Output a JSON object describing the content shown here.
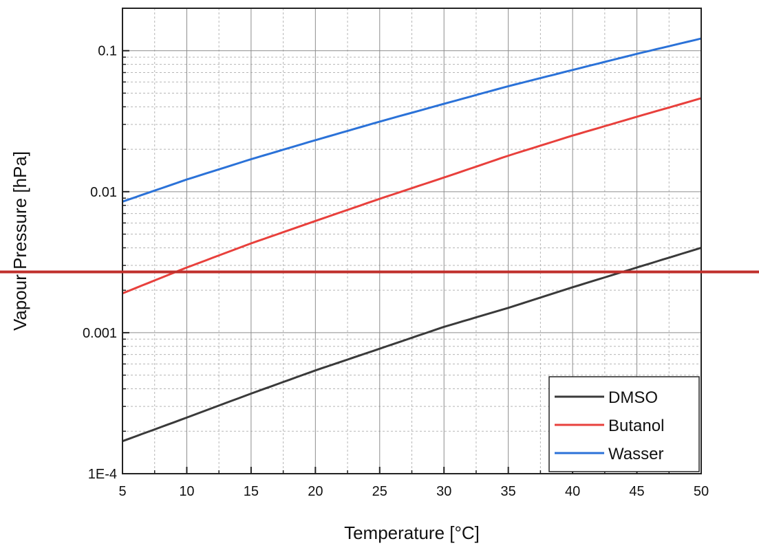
{
  "chart_data": {
    "type": "line",
    "xlabel": "Temperature [°C]",
    "ylabel": "Vapour Pressure [hPa]",
    "xlim": [
      5,
      50
    ],
    "ylim": [
      0.0001,
      0.2
    ],
    "y_scale": "log",
    "grid": true,
    "x_ticks": [
      5,
      10,
      15,
      20,
      25,
      30,
      35,
      40,
      45,
      50
    ],
    "x_tick_labels": [
      "5",
      "10",
      "15",
      "20",
      "25",
      "30",
      "35",
      "40",
      "45",
      "50"
    ],
    "y_ticks": [
      0.0001,
      0.001,
      0.01,
      0.1
    ],
    "y_tick_labels": [
      "1E-4",
      "0.001",
      "0.01",
      "0.1"
    ],
    "legend_position": "bottom-right",
    "series": [
      {
        "name": "DMSO",
        "color": "#3a3a3a",
        "x": [
          5,
          10,
          15,
          20,
          25,
          30,
          35,
          40,
          45,
          50
        ],
        "y": [
          0.00017,
          0.00025,
          0.00037,
          0.00054,
          0.00077,
          0.0011,
          0.0015,
          0.0021,
          0.0029,
          0.004
        ]
      },
      {
        "name": "Butanol",
        "color": "#e8403c",
        "x": [
          5,
          10,
          15,
          20,
          25,
          30,
          35,
          40,
          45,
          50
        ],
        "y": [
          0.0019,
          0.0029,
          0.0043,
          0.0062,
          0.0089,
          0.0126,
          0.018,
          0.025,
          0.034,
          0.046
        ]
      },
      {
        "name": "Wasser",
        "color": "#2b72d8",
        "x": [
          5,
          10,
          15,
          20,
          25,
          30,
          35,
          40,
          45,
          50
        ],
        "y": [
          0.0085,
          0.0122,
          0.017,
          0.0232,
          0.0314,
          0.042,
          0.056,
          0.073,
          0.095,
          0.122
        ]
      }
    ],
    "reference_line": {
      "y": 0.0027,
      "color": "#c0302c"
    }
  }
}
